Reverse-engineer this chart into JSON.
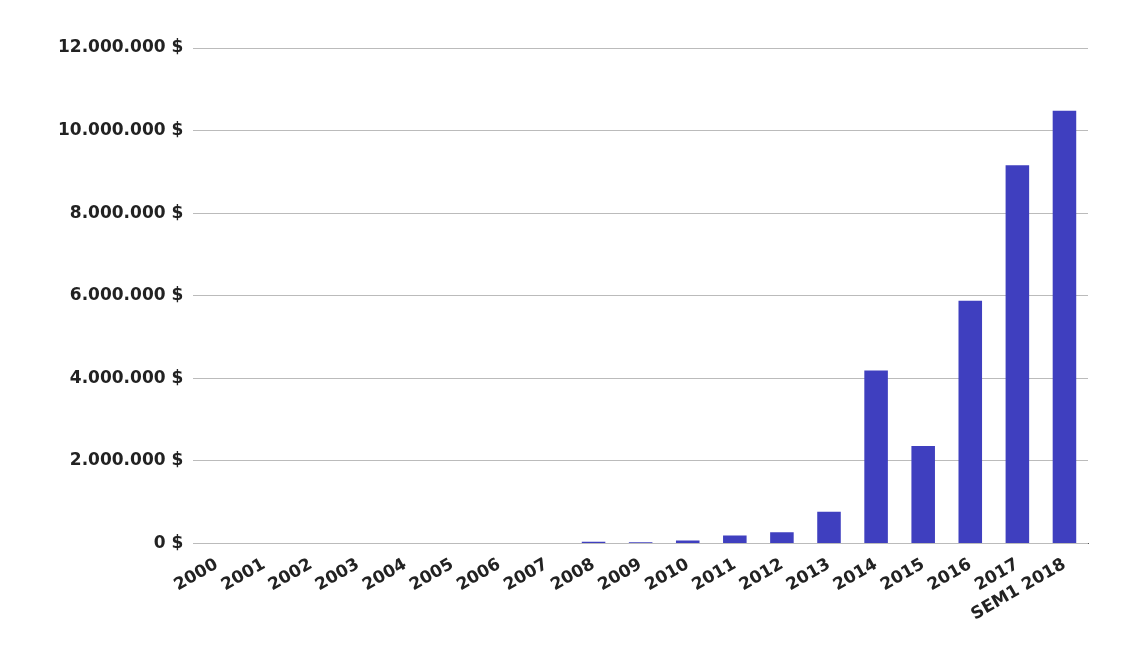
{
  "chart_data": {
    "type": "bar",
    "categories": [
      "2000",
      "2001",
      "2002",
      "2003",
      "2004",
      "2005",
      "2006",
      "2007",
      "2008",
      "2009",
      "2010",
      "2011",
      "2012",
      "2013",
      "2014",
      "2015",
      "2016",
      "2017",
      "SEM1 2018"
    ],
    "values": [
      0,
      0,
      0,
      0,
      0,
      0,
      0,
      0,
      40000,
      30000,
      70000,
      190000,
      270000,
      770000,
      4190000,
      2360000,
      5880000,
      9160000,
      10480000
    ],
    "color": "#3f3fbf",
    "ylim": [
      0,
      12000000
    ],
    "yticks": [
      {
        "value": 0,
        "label": "0 $"
      },
      {
        "value": 2000000,
        "label": "2.000.000 $"
      },
      {
        "value": 4000000,
        "label": "4.000.000 $"
      },
      {
        "value": 6000000,
        "label": "6.000.000 $"
      },
      {
        "value": 8000000,
        "label": "8.000.000 $"
      },
      {
        "value": 10000000,
        "label": "10.000.000 $"
      },
      {
        "value": 12000000,
        "label": "12.000.000 $"
      }
    ],
    "grid": "y",
    "legend": false
  }
}
